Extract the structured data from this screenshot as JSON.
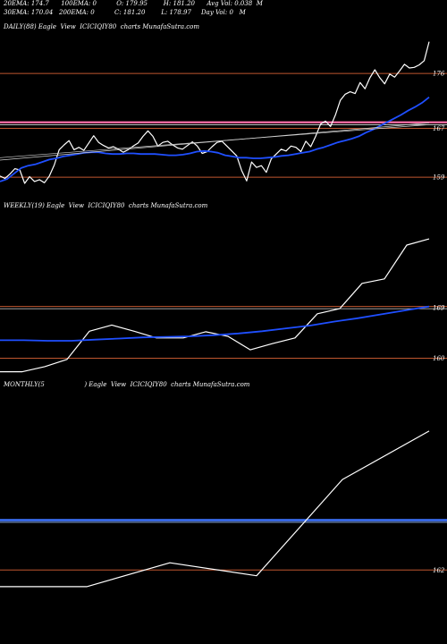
{
  "header": {
    "line1": "20EMA: 174.7      100EMA: 0          O: 179.95        H: 181.20      Avg Vol: 0.038  M",
    "line2": "30EMA: 170.04   200EMA: 0          C: 181.20        L: 178.97     Day Vol: 0   M"
  },
  "colors": {
    "background": "#000000",
    "price": "#ffffff",
    "ema": "#1f4fff",
    "hline": "#c0562f",
    "pink": "#ff6fa8"
  },
  "chart_data": [
    {
      "type": "line",
      "panel": "daily",
      "label": "DAILY(88) Eagle  View  ICICIQIY80  charts MunafaSutra.com",
      "yticks": [
        176,
        167,
        159
      ],
      "ylim": [
        155.8,
        182.9
      ],
      "series": [
        {
          "role": "price",
          "values": [
            159.2,
            158.8,
            159.5,
            160.4,
            160.2,
            158.0,
            159.1,
            158.3,
            158.6,
            158.1,
            159.2,
            161.0,
            163.5,
            164.3,
            165.0,
            163.5,
            163.9,
            163.4,
            164.6,
            165.8,
            164.7,
            164.2,
            163.8,
            164.0,
            163.6,
            163.1,
            163.5,
            164.1,
            164.6,
            165.7,
            166.6,
            165.7,
            164.1,
            164.7,
            164.9,
            164.3,
            163.8,
            163.6,
            164.2,
            164.8,
            164.1,
            162.9,
            163.2,
            164.0,
            164.7,
            164.9,
            164.1,
            163.3,
            162.5,
            160.1,
            158.4,
            161.5,
            160.6,
            160.9,
            159.8,
            162.0,
            162.8,
            163.6,
            163.3,
            164.1,
            163.9,
            163.2,
            164.9,
            164.0,
            165.7,
            167.7,
            168.2,
            167.3,
            169.2,
            171.6,
            172.6,
            173.0,
            172.7,
            174.5,
            173.5,
            175.3,
            176.6,
            175.3,
            174.3,
            175.9,
            175.4,
            176.4,
            177.5,
            176.9,
            177.0,
            177.4,
            178.1,
            181.2
          ]
        },
        {
          "role": "ema",
          "values": [
            158.3,
            158.7,
            159.6,
            160.5,
            160.9,
            161.1,
            161.5,
            161.9,
            162.1,
            162.4,
            162.6,
            162.8,
            163.0,
            163.1,
            163.1,
            162.9,
            162.8,
            162.8,
            162.9,
            162.9,
            162.8,
            162.8,
            162.8,
            162.7,
            162.6,
            162.6,
            162.7,
            162.9,
            163.2,
            163.3,
            163.2,
            163.0,
            162.6,
            162.4,
            162.2,
            162.2,
            162.1,
            162.1,
            162.2,
            162.3,
            162.5,
            162.6,
            162.8,
            163.0,
            163.2,
            163.6,
            163.9,
            164.3,
            164.7,
            165.0,
            165.3,
            165.7,
            166.3,
            166.8,
            167.4,
            168.0,
            168.6,
            169.2,
            169.9,
            170.5,
            171.2,
            172.1
          ]
        },
        {
          "role": "avg1",
          "values": [
            162.2,
            167.6
          ]
        },
        {
          "role": "avg2",
          "values": [
            161.8,
            167.9
          ]
        }
      ],
      "hlines": [
        176,
        168,
        167.6,
        167,
        159
      ]
    },
    {
      "type": "line",
      "panel": "weekly",
      "label": "WEEKLY(19) Eagle  View  ICICIQIY80  charts MunafaSutra.com",
      "yticks": [
        169,
        160
      ],
      "ylim": [
        156.9,
        186.3
      ],
      "series": [
        {
          "role": "price",
          "values": [
            157.6,
            157.6,
            158.5,
            159.8,
            164.8,
            165.9,
            164.8,
            163.6,
            163.6,
            164.7,
            163.9,
            161.5,
            162.6,
            163.6,
            167.9,
            168.8,
            173.3,
            174.1,
            180.1,
            181.2
          ]
        },
        {
          "role": "ema",
          "values": [
            163.2,
            163.2,
            163.1,
            163.1,
            163.3,
            163.5,
            163.7,
            163.8,
            163.9,
            164.1,
            164.4,
            164.8,
            165.3,
            165.8,
            166.5,
            167.1,
            167.8,
            168.5,
            169.2
          ]
        }
      ],
      "hlines": [
        169.2,
        168.8,
        160
      ]
    },
    {
      "type": "line",
      "panel": "monthly",
      "label": "MONTHLY(5                    ) Eagle  View  ICICIQIY80  charts MunafaSutra.com",
      "yticks": [
        162
      ],
      "ylim": [
        156.1,
        187.0
      ],
      "series": [
        {
          "role": "price",
          "values": [
            159.7,
            159.7,
            163.0,
            161.2,
            174.5,
            181.2
          ]
        }
      ],
      "hlines": [
        168.9,
        162
      ]
    }
  ]
}
